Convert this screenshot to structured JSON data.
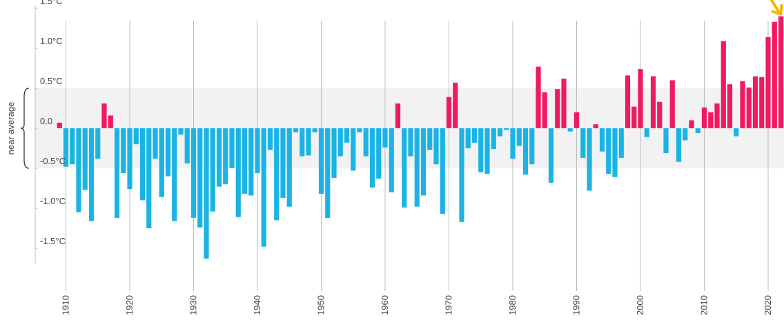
{
  "chart_data": {
    "type": "bar",
    "title": "",
    "xlabel": "",
    "ylabel": "",
    "ylim": [
      -2.1,
      1.55
    ],
    "band": {
      "label": "near average",
      "range": [
        -0.5,
        0.5
      ]
    },
    "y_ticks": [
      {
        "value": 1.5,
        "label": "1.5°C"
      },
      {
        "value": 1.0,
        "label": "1.0°C"
      },
      {
        "value": 0.5,
        "label": "0.5°C"
      },
      {
        "value": 0.0,
        "label": "0.0"
      },
      {
        "value": -0.5,
        "label": "-0.5°C"
      },
      {
        "value": -1.0,
        "label": "-1.0°C"
      },
      {
        "value": -1.5,
        "label": "-1.5°C"
      }
    ],
    "x_ticks": [
      1910,
      1920,
      1930,
      1940,
      1950,
      1960,
      1970,
      1980,
      1990,
      2000,
      2010,
      2020
    ],
    "x": [
      1909,
      1910,
      1911,
      1912,
      1913,
      1914,
      1915,
      1916,
      1917,
      1918,
      1919,
      1920,
      1921,
      1922,
      1923,
      1924,
      1925,
      1926,
      1927,
      1928,
      1929,
      1930,
      1931,
      1932,
      1933,
      1934,
      1935,
      1936,
      1937,
      1938,
      1939,
      1940,
      1941,
      1942,
      1943,
      1944,
      1945,
      1946,
      1947,
      1948,
      1949,
      1950,
      1951,
      1952,
      1953,
      1954,
      1955,
      1956,
      1957,
      1958,
      1959,
      1960,
      1961,
      1962,
      1963,
      1964,
      1965,
      1966,
      1967,
      1968,
      1969,
      1970,
      1971,
      1972,
      1973,
      1974,
      1975,
      1976,
      1977,
      1978,
      1979,
      1980,
      1981,
      1982,
      1983,
      1984,
      1985,
      1986,
      1987,
      1988,
      1989,
      1990,
      1991,
      1992,
      1993,
      1994,
      1995,
      1996,
      1997,
      1998,
      1999,
      2000,
      2001,
      2002,
      2003,
      2004,
      2005,
      2006,
      2007,
      2008,
      2009,
      2010,
      2011,
      2012,
      2013,
      2014,
      2015,
      2016,
      2017,
      2018,
      2019,
      2020,
      2021,
      2022
    ],
    "values": [
      0.07,
      -0.48,
      -0.45,
      -1.05,
      -0.77,
      -1.16,
      -0.38,
      0.31,
      0.16,
      -1.12,
      -0.56,
      -0.76,
      -0.2,
      -0.9,
      -1.25,
      -0.38,
      -0.86,
      -0.6,
      -1.16,
      -0.08,
      -0.44,
      -1.12,
      -1.24,
      -1.63,
      -1.04,
      -0.73,
      -0.7,
      -0.5,
      -1.11,
      -0.82,
      -0.84,
      -0.56,
      -1.48,
      -0.27,
      -1.15,
      -0.87,
      -0.98,
      -0.05,
      -0.35,
      -0.34,
      -0.05,
      -0.82,
      -1.12,
      -0.62,
      -0.35,
      -0.18,
      -0.53,
      -0.05,
      -0.35,
      -0.74,
      -0.63,
      -0.24,
      -0.8,
      0.31,
      -0.99,
      -0.35,
      -0.98,
      -0.84,
      -0.27,
      -0.45,
      -1.07,
      0.39,
      0.57,
      -1.17,
      -0.25,
      -0.18,
      -0.55,
      -0.57,
      -0.26,
      -0.1,
      -0.02,
      -0.38,
      -0.22,
      -0.58,
      -0.45,
      0.77,
      0.45,
      -0.68,
      0.49,
      0.62,
      -0.04,
      0.2,
      -0.37,
      -0.78,
      0.05,
      -0.29,
      -0.57,
      -0.61,
      -0.37,
      0.66,
      0.27,
      0.74,
      -0.11,
      0.65,
      0.33,
      -0.31,
      0.6,
      -0.42,
      -0.15,
      0.1,
      -0.06,
      0.26,
      0.2,
      0.31,
      1.09,
      0.55,
      -0.1,
      0.59,
      0.51,
      0.65,
      0.64,
      1.14,
      1.33,
      1.4
    ],
    "colors": {
      "above": "#ef1a5f",
      "below": "#1ab4e4",
      "band": "#f2f2f2",
      "axis": "#bbbbbb",
      "marker": "#f2b705"
    },
    "grid": false,
    "legend": "none"
  }
}
